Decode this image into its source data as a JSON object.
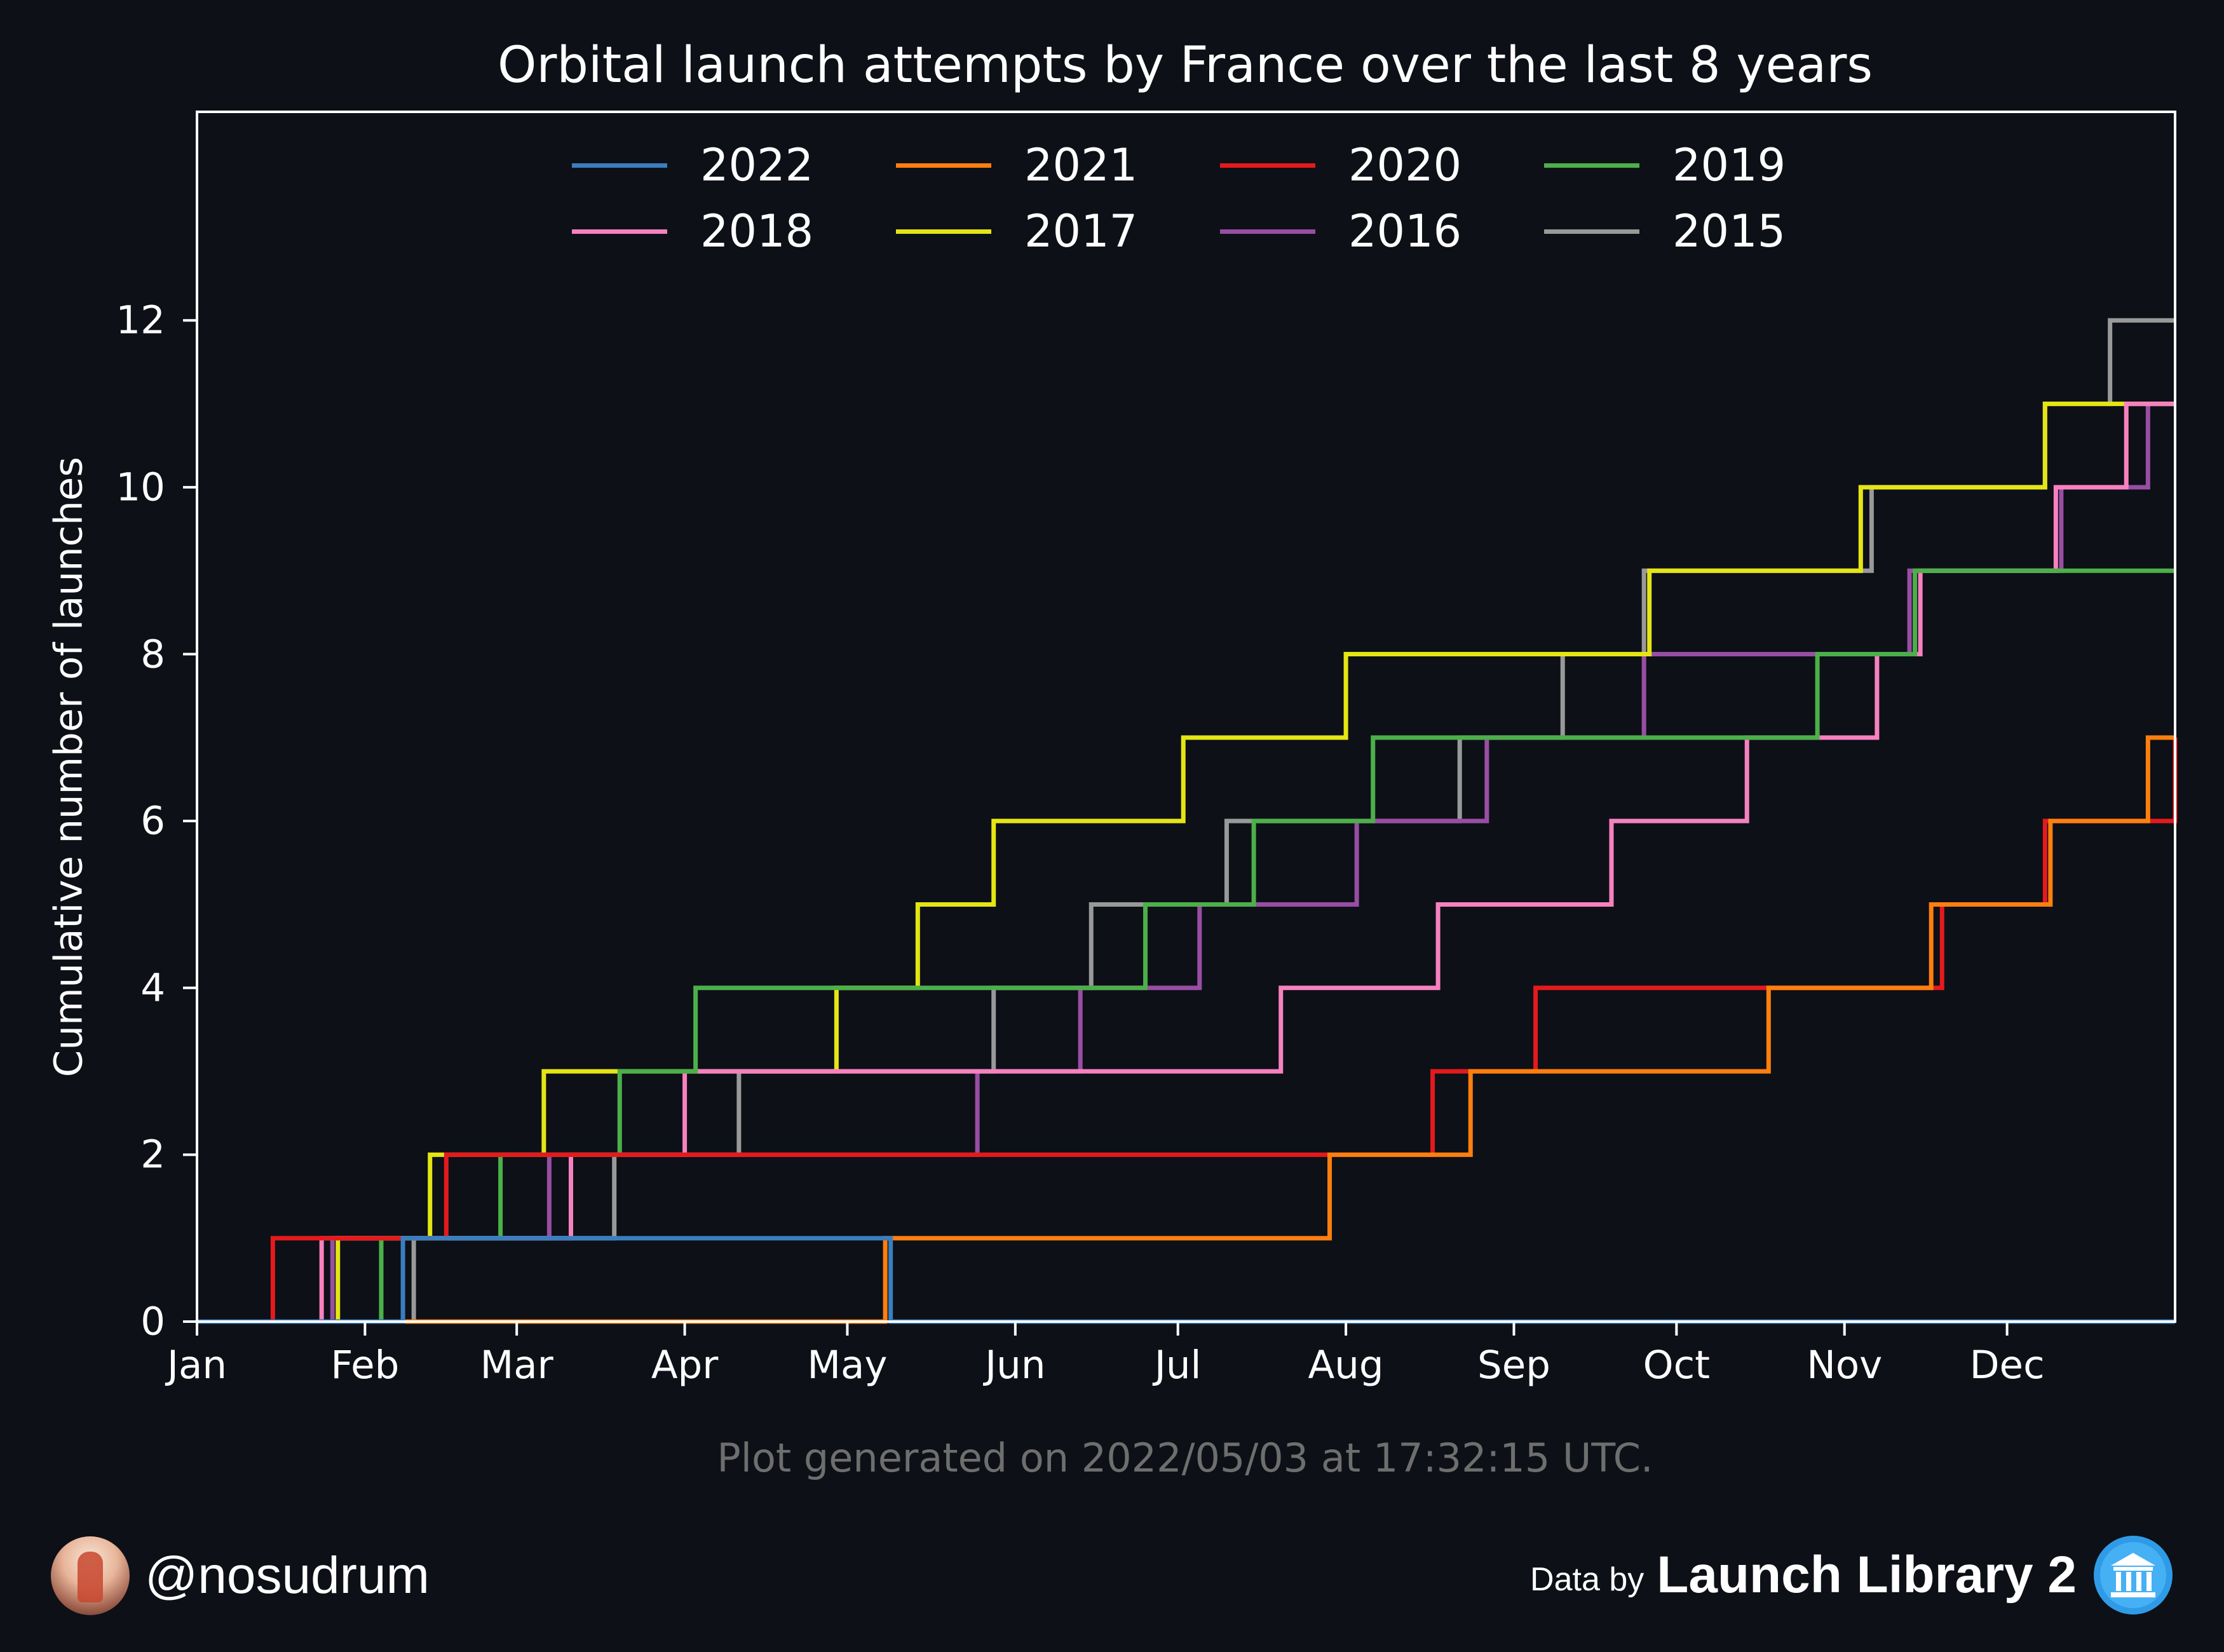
{
  "title": "Orbital launch attempts by France over the last 8 years",
  "footnote": "Plot generated on 2022/05/03 at 17:32:15 UTC.",
  "handle": "@nosudrum",
  "credit": {
    "prefix": "Data by",
    "name": "Launch Library 2"
  },
  "icons": {
    "avatar": "astronaut-avatar-icon",
    "credit": "library-building-icon"
  },
  "chart_data": {
    "type": "line",
    "step": true,
    "title": "Orbital launch attempts by France over the last 8 years",
    "xlabel": "",
    "ylabel": "Cumulative number of launches",
    "xlim": [
      1,
      366
    ],
    "ylim": [
      0,
      14.5
    ],
    "x_ticks": [
      {
        "label": "Jan",
        "day": 1
      },
      {
        "label": "Feb",
        "day": 32
      },
      {
        "label": "Mar",
        "day": 60
      },
      {
        "label": "Apr",
        "day": 91
      },
      {
        "label": "May",
        "day": 121
      },
      {
        "label": "Jun",
        "day": 152
      },
      {
        "label": "Jul",
        "day": 182
      },
      {
        "label": "Aug",
        "day": 213
      },
      {
        "label": "Sep",
        "day": 244
      },
      {
        "label": "Oct",
        "day": 274
      },
      {
        "label": "Nov",
        "day": 305
      },
      {
        "label": "Dec",
        "day": 335
      }
    ],
    "y_ticks": [
      0,
      2,
      4,
      6,
      8,
      10,
      12
    ],
    "grid": false,
    "legend": "top-center",
    "series": [
      {
        "name": "2022",
        "color": "#3a7ebf",
        "values": [
          [
            1,
            0
          ],
          [
            39,
            1
          ],
          [
            129,
            0
          ]
        ]
      },
      {
        "name": "2021",
        "color": "#ff7f0e",
        "values": [
          [
            1,
            0
          ],
          [
            128,
            1
          ],
          [
            210,
            2
          ],
          [
            236,
            3
          ],
          [
            291,
            4
          ],
          [
            321,
            5
          ],
          [
            343,
            6
          ],
          [
            361,
            7
          ]
        ]
      },
      {
        "name": "2020",
        "color": "#e41a1c",
        "values": [
          [
            1,
            0
          ],
          [
            15,
            1
          ],
          [
            47,
            2
          ],
          [
            229,
            3
          ],
          [
            248,
            4
          ],
          [
            323,
            5
          ],
          [
            342,
            6
          ],
          [
            366,
            7
          ]
        ]
      },
      {
        "name": "2019",
        "color": "#4daf4a",
        "values": [
          [
            1,
            0
          ],
          [
            35,
            1
          ],
          [
            57,
            2
          ],
          [
            79,
            3
          ],
          [
            93,
            4
          ],
          [
            176,
            5
          ],
          [
            196,
            6
          ],
          [
            218,
            7
          ],
          [
            300,
            8
          ],
          [
            318,
            9
          ]
        ]
      },
      {
        "name": "2018",
        "color": "#f781bf",
        "values": [
          [
            1,
            0
          ],
          [
            24,
            1
          ],
          [
            70,
            2
          ],
          [
            91,
            3
          ],
          [
            201,
            4
          ],
          [
            230,
            5
          ],
          [
            262,
            6
          ],
          [
            287,
            7
          ],
          [
            311,
            8
          ],
          [
            319,
            9
          ],
          [
            344,
            10
          ],
          [
            357,
            11
          ]
        ]
      },
      {
        "name": "2017",
        "color": "#e5e514",
        "values": [
          [
            1,
            0
          ],
          [
            27,
            1
          ],
          [
            44,
            2
          ],
          [
            65,
            3
          ],
          [
            119,
            4
          ],
          [
            134,
            5
          ],
          [
            148,
            6
          ],
          [
            183,
            7
          ],
          [
            213,
            8
          ],
          [
            269,
            9
          ],
          [
            308,
            10
          ],
          [
            342,
            11
          ]
        ]
      },
      {
        "name": "2016",
        "color": "#984ea3",
        "values": [
          [
            1,
            0
          ],
          [
            26,
            1
          ],
          [
            66,
            2
          ],
          [
            145,
            3
          ],
          [
            164,
            4
          ],
          [
            186,
            5
          ],
          [
            215,
            6
          ],
          [
            239,
            7
          ],
          [
            268,
            8
          ],
          [
            317,
            9
          ],
          [
            345,
            10
          ],
          [
            361,
            11
          ]
        ]
      },
      {
        "name": "2015",
        "color": "#999999",
        "values": [
          [
            1,
            0
          ],
          [
            41,
            1
          ],
          [
            78,
            2
          ],
          [
            101,
            3
          ],
          [
            148,
            4
          ],
          [
            166,
            5
          ],
          [
            191,
            6
          ],
          [
            234,
            7
          ],
          [
            253,
            8
          ],
          [
            268,
            9
          ],
          [
            310,
            10
          ],
          [
            342,
            11
          ],
          [
            354,
            12
          ]
        ]
      }
    ]
  }
}
